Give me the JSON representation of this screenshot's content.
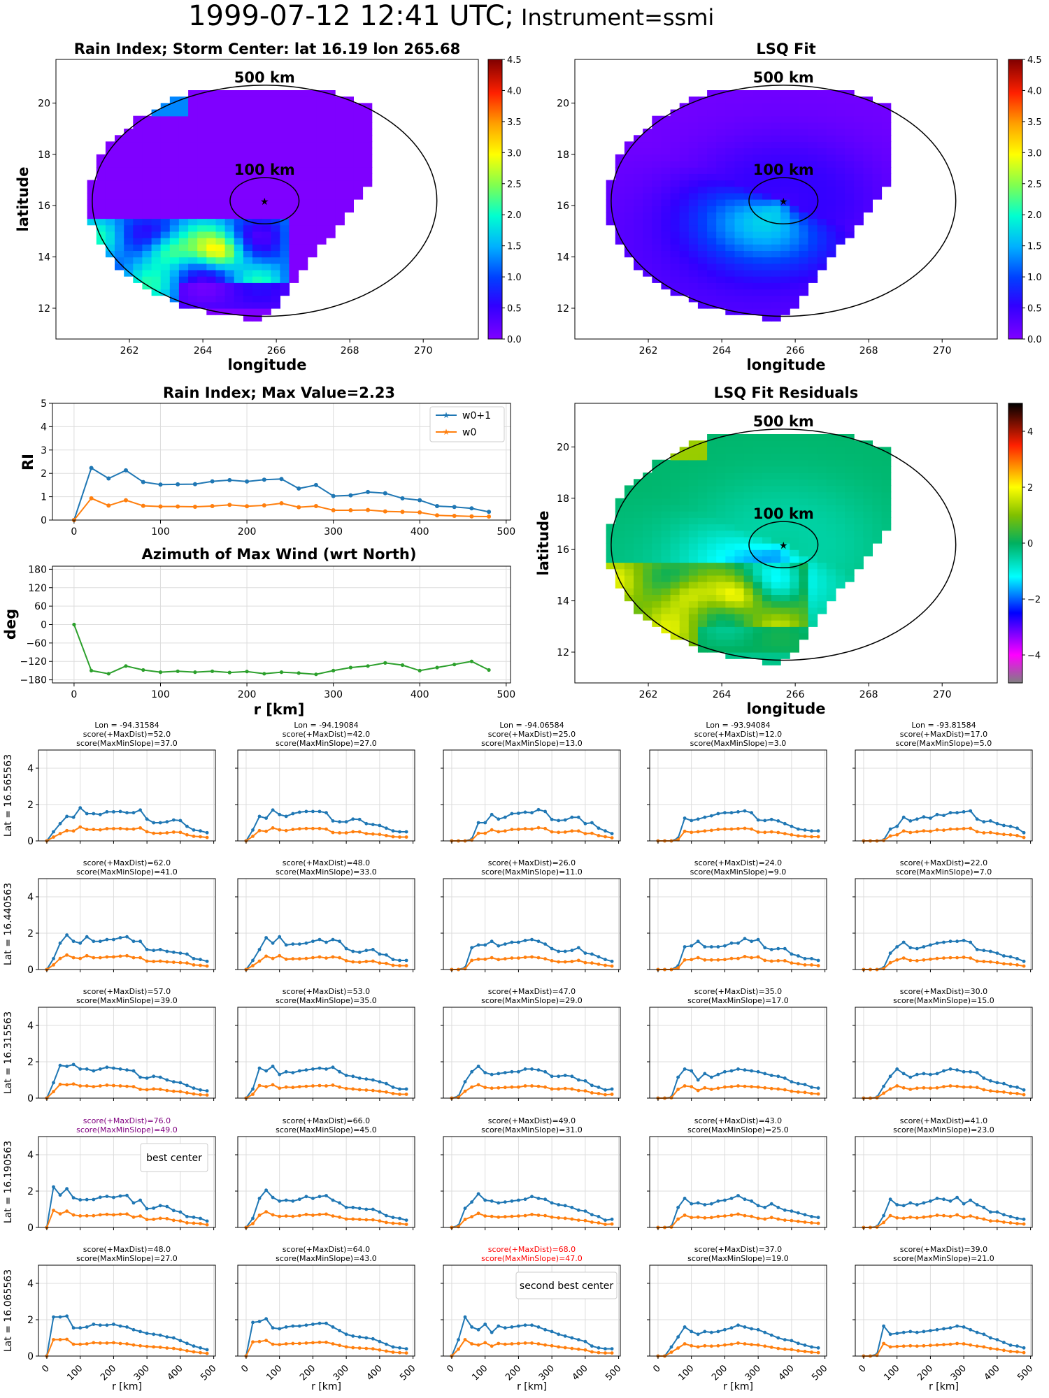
{
  "suptitle": {
    "time": "1999-07-12 12:41 UTC;",
    "instrument": "Instrument=ssmi"
  },
  "maps": {
    "rain_index": {
      "title": "Rain Index; Storm Center: lat 16.19 lon 265.68",
      "xlabel": "longitude",
      "ylabel": "latitude"
    },
    "lsq_fit": {
      "title": "LSQ Fit",
      "xlabel": "longitude"
    },
    "residuals": {
      "title": "LSQ Fit Residuals",
      "xlabel": "longitude",
      "ylabel": "latitude"
    },
    "circle_labels": [
      "500 km",
      "100 km"
    ],
    "center": {
      "lat": 16.19,
      "lon": 265.68
    },
    "xticks": [
      "262",
      "264",
      "266",
      "268",
      "270"
    ],
    "yticks": [
      "12",
      "14",
      "16",
      "18",
      "20"
    ],
    "colorbar_ticks": [
      "0.0",
      "0.5",
      "1.0",
      "1.5",
      "2.0",
      "2.5",
      "3.0",
      "3.5",
      "4.0",
      "4.5"
    ],
    "residual_colorbar_ticks": [
      "−4",
      "−2",
      "0",
      "2",
      "4"
    ]
  },
  "rain_profile": {
    "title": "Rain Index; Max Value=2.23",
    "ylabel": "RI",
    "legend": [
      "w0+1",
      "w0"
    ],
    "colors": {
      "w0p1": "#1f77b4",
      "w0": "#ff7f0e",
      "azimuth": "#2ca02c"
    }
  },
  "azimuth": {
    "title": "Azimuth of Max Wind (wrt North)",
    "ylabel": "deg",
    "xlabel": "r [km]",
    "yticks": [
      "180",
      "120",
      "60",
      "0",
      "−60",
      "−120",
      "−180"
    ]
  },
  "grid": {
    "lons": [
      "Lon = -94.31584",
      "Lon = -94.19084",
      "Lon = -94.06584",
      "Lon = -93.94084",
      "Lon = -93.81584"
    ],
    "lats": [
      "Lat = 16.565563",
      "Lat = 16.440563",
      "Lat = 16.315563",
      "Lat = 16.190563",
      "Lat = 16.065563"
    ],
    "xlabel": "r [km]",
    "xticks": [
      "0",
      "100",
      "200",
      "300",
      "400",
      "500"
    ],
    "yticks": [
      "0",
      "2",
      "4"
    ],
    "best_label": "best center",
    "second_label": "second best center",
    "scores": [
      [
        [
          "score(+MaxDist)=52.0",
          "score(MaxMinSlope)=37.0"
        ],
        [
          "score(+MaxDist)=42.0",
          "score(MaxMinSlope)=27.0"
        ],
        [
          "score(+MaxDist)=25.0",
          "score(MaxMinSlope)=13.0"
        ],
        [
          "score(+MaxDist)=12.0",
          "score(MaxMinSlope)=3.0"
        ],
        [
          "score(+MaxDist)=17.0",
          "score(MaxMinSlope)=5.0"
        ]
      ],
      [
        [
          "score(+MaxDist)=62.0",
          "score(MaxMinSlope)=41.0"
        ],
        [
          "score(+MaxDist)=48.0",
          "score(MaxMinSlope)=33.0"
        ],
        [
          "score(+MaxDist)=26.0",
          "score(MaxMinSlope)=11.0"
        ],
        [
          "score(+MaxDist)=24.0",
          "score(MaxMinSlope)=9.0"
        ],
        [
          "score(+MaxDist)=22.0",
          "score(MaxMinSlope)=7.0"
        ]
      ],
      [
        [
          "score(+MaxDist)=57.0",
          "score(MaxMinSlope)=39.0"
        ],
        [
          "score(+MaxDist)=53.0",
          "score(MaxMinSlope)=35.0"
        ],
        [
          "score(+MaxDist)=47.0",
          "score(MaxMinSlope)=29.0"
        ],
        [
          "score(+MaxDist)=35.0",
          "score(MaxMinSlope)=17.0"
        ],
        [
          "score(+MaxDist)=30.0",
          "score(MaxMinSlope)=15.0"
        ]
      ],
      [
        [
          "score(+MaxDist)=76.0",
          "score(MaxMinSlope)=49.0"
        ],
        [
          "score(+MaxDist)=66.0",
          "score(MaxMinSlope)=45.0"
        ],
        [
          "score(+MaxDist)=49.0",
          "score(MaxMinSlope)=31.0"
        ],
        [
          "score(+MaxDist)=43.0",
          "score(MaxMinSlope)=25.0"
        ],
        [
          "score(+MaxDist)=41.0",
          "score(MaxMinSlope)=23.0"
        ]
      ],
      [
        [
          "score(+MaxDist)=48.0",
          "score(MaxMinSlope)=27.0"
        ],
        [
          "score(+MaxDist)=64.0",
          "score(MaxMinSlope)=43.0"
        ],
        [
          "score(+MaxDist)=68.0",
          "score(MaxMinSlope)=47.0"
        ],
        [
          "score(+MaxDist)=37.0",
          "score(MaxMinSlope)=19.0"
        ],
        [
          "score(+MaxDist)=39.0",
          "score(MaxMinSlope)=21.0"
        ]
      ]
    ],
    "score_colors": {
      "normal": "#000000",
      "best": "#800080",
      "second": "#ff0000"
    }
  },
  "chart_data": [
    {
      "type": "line",
      "title": "Rain Index; Max Value=2.23",
      "xlabel": "",
      "ylabel": "RI",
      "xlim": [
        -25,
        505
      ],
      "ylim": [
        0,
        5
      ],
      "xticks": [
        "0",
        "100",
        "200",
        "300",
        "400",
        "500"
      ],
      "yticks": [
        "0",
        "1",
        "2",
        "3",
        "4",
        "5"
      ],
      "grid": true,
      "legend_position": "top-right",
      "x": [
        0,
        20,
        40,
        60,
        80,
        100,
        120,
        140,
        160,
        180,
        200,
        220,
        240,
        260,
        280,
        300,
        320,
        340,
        360,
        380,
        400,
        420,
        440,
        460,
        480
      ],
      "series": [
        {
          "name": "w0+1",
          "values": [
            0,
            2.23,
            1.78,
            2.13,
            1.63,
            1.52,
            1.53,
            1.54,
            1.66,
            1.71,
            1.65,
            1.73,
            1.76,
            1.35,
            1.5,
            1.03,
            1.06,
            1.2,
            1.15,
            0.93,
            0.85,
            0.6,
            0.56,
            0.5,
            0.35
          ]
        },
        {
          "name": "w0",
          "values": [
            0,
            0.93,
            0.62,
            0.85,
            0.61,
            0.58,
            0.58,
            0.57,
            0.6,
            0.65,
            0.59,
            0.63,
            0.72,
            0.55,
            0.6,
            0.42,
            0.42,
            0.43,
            0.37,
            0.35,
            0.33,
            0.2,
            0.18,
            0.16,
            0.15
          ]
        }
      ]
    },
    {
      "type": "line",
      "title": "Azimuth of Max Wind (wrt North)",
      "xlabel": "r [km]",
      "ylabel": "deg",
      "xlim": [
        -25,
        505
      ],
      "ylim": [
        -190,
        190
      ],
      "grid": true,
      "x": [
        0,
        20,
        40,
        60,
        80,
        100,
        120,
        140,
        160,
        180,
        200,
        220,
        240,
        260,
        280,
        300,
        320,
        340,
        360,
        380,
        400,
        420,
        440,
        460,
        480
      ],
      "series": [
        {
          "values": [
            0,
            -150,
            -160,
            -135,
            -148,
            -155,
            -152,
            -155,
            -152,
            -156,
            -153,
            -160,
            -155,
            -158,
            -162,
            -150,
            -140,
            -135,
            -125,
            -132,
            -150,
            -140,
            -130,
            -120,
            -148
          ]
        }
      ]
    },
    {
      "type": "line",
      "title": "Grid of candidate centers (5 x 5 small multiples)",
      "xlim": [
        -25,
        505
      ],
      "ylim": [
        0,
        5
      ],
      "x": [
        0,
        20,
        40,
        60,
        80,
        100,
        120,
        140,
        160,
        180,
        200,
        220,
        240,
        260,
        280,
        300,
        320,
        340,
        360,
        380,
        400,
        420,
        440,
        460,
        480
      ],
      "panels": [
        [
          [
            0,
            0.5,
            0.95,
            1.35,
            1.3,
            1.82,
            1.5,
            1.5,
            1.45,
            1.6,
            1.6,
            1.62,
            1.55,
            1.55,
            1.7,
            1.2,
            1.0,
            1.0,
            1.05,
            1.15,
            1.12,
            0.8,
            0.6,
            0.55,
            0.45
          ],
          [
            0,
            0.6,
            1.35,
            1.25,
            1.7,
            1.45,
            1.35,
            1.5,
            1.58,
            1.62,
            1.62,
            1.62,
            1.55,
            1.1,
            1.05,
            1.05,
            1.2,
            1.18,
            0.95,
            0.9,
            0.85,
            0.7,
            0.55,
            0.5,
            0.5
          ],
          [
            0,
            0,
            0,
            0.1,
            1.0,
            1.0,
            1.45,
            1.2,
            1.3,
            1.5,
            1.52,
            1.58,
            1.55,
            1.72,
            1.62,
            1.18,
            1.12,
            1.15,
            1.3,
            1.3,
            0.95,
            1.0,
            0.7,
            0.55,
            0.4
          ],
          [
            0,
            0,
            0,
            0.15,
            1.25,
            1.12,
            1.2,
            1.3,
            1.38,
            1.5,
            1.55,
            1.55,
            1.6,
            1.65,
            1.55,
            1.15,
            1.12,
            1.18,
            1.1,
            0.95,
            0.8,
            0.65,
            0.6,
            0.55,
            0.55
          ],
          [
            0,
            0,
            0,
            0.05,
            0.65,
            0.8,
            1.3,
            1.1,
            1.2,
            1.32,
            1.25,
            1.45,
            1.4,
            1.55,
            1.55,
            1.6,
            1.65,
            1.2,
            1.05,
            1.1,
            0.95,
            0.85,
            0.8,
            0.7,
            0.45
          ]
        ],
        [
          [
            0,
            0.6,
            1.45,
            1.9,
            1.55,
            1.45,
            1.8,
            1.55,
            1.55,
            1.65,
            1.65,
            1.75,
            1.8,
            1.55,
            1.55,
            1.1,
            1.05,
            1.1,
            1.0,
            0.95,
            0.9,
            0.85,
            0.6,
            0.55,
            0.45
          ],
          [
            0,
            0.5,
            1.1,
            1.75,
            1.45,
            1.8,
            1.35,
            1.4,
            1.4,
            1.45,
            1.55,
            1.65,
            1.5,
            1.65,
            1.55,
            1.15,
            1.0,
            0.95,
            1.05,
            1.1,
            0.85,
            0.8,
            0.55,
            0.5,
            0.5
          ],
          [
            0,
            0,
            0.1,
            1.2,
            1.35,
            1.35,
            1.55,
            1.3,
            1.4,
            1.5,
            1.5,
            1.6,
            1.65,
            1.55,
            1.4,
            1.15,
            1.0,
            1.0,
            1.05,
            1.2,
            0.9,
            0.85,
            0.7,
            0.55,
            0.45
          ],
          [
            0,
            0,
            0,
            0.2,
            1.25,
            1.3,
            1.55,
            1.25,
            1.25,
            1.25,
            1.3,
            1.45,
            1.45,
            1.7,
            1.55,
            1.65,
            1.2,
            1.1,
            1.15,
            1.15,
            0.85,
            0.75,
            0.6,
            0.6,
            0.5
          ],
          [
            0,
            0,
            0,
            0.1,
            0.9,
            1.25,
            1.5,
            1.2,
            1.15,
            1.25,
            1.35,
            1.45,
            1.5,
            1.55,
            1.55,
            1.6,
            1.5,
            1.1,
            1.05,
            1.0,
            0.9,
            0.75,
            0.7,
            0.6,
            0.45
          ]
        ],
        [
          [
            0,
            0.85,
            1.8,
            1.75,
            1.85,
            1.6,
            1.6,
            1.5,
            1.6,
            1.7,
            1.65,
            1.6,
            1.55,
            1.5,
            1.15,
            1.1,
            1.2,
            1.15,
            1.0,
            0.9,
            0.85,
            0.7,
            0.55,
            0.45,
            0.4
          ],
          [
            0,
            0.5,
            1.65,
            1.5,
            1.75,
            1.3,
            1.45,
            1.4,
            1.5,
            1.55,
            1.6,
            1.65,
            1.6,
            1.7,
            1.45,
            1.25,
            1.2,
            1.1,
            1.05,
            1.0,
            0.9,
            0.8,
            0.6,
            0.5,
            0.5
          ],
          [
            0,
            0.1,
            0.9,
            1.45,
            1.75,
            1.4,
            1.3,
            1.35,
            1.4,
            1.45,
            1.45,
            1.6,
            1.6,
            1.55,
            1.45,
            1.2,
            1.2,
            1.25,
            1.2,
            1.0,
            0.95,
            0.7,
            0.6,
            0.45,
            0.5
          ],
          [
            0,
            0,
            0.05,
            1.15,
            1.6,
            1.5,
            1.0,
            1.35,
            1.15,
            1.3,
            1.45,
            1.5,
            1.6,
            1.55,
            1.5,
            1.45,
            1.35,
            1.25,
            1.2,
            1.1,
            0.9,
            0.8,
            0.75,
            0.6,
            0.55
          ],
          [
            0,
            0,
            0.05,
            0.65,
            1.2,
            1.6,
            1.35,
            1.15,
            1.3,
            1.35,
            1.3,
            1.35,
            1.5,
            1.6,
            1.55,
            1.45,
            1.45,
            1.4,
            1.1,
            0.95,
            0.85,
            0.8,
            0.65,
            0.6,
            0.45
          ]
        ],
        [
          [
            0,
            2.23,
            1.78,
            2.13,
            1.63,
            1.52,
            1.53,
            1.54,
            1.66,
            1.71,
            1.65,
            1.73,
            1.76,
            1.35,
            1.5,
            1.03,
            1.06,
            1.2,
            1.15,
            0.93,
            0.85,
            0.6,
            0.56,
            0.5,
            0.35
          ],
          [
            0,
            0.5,
            1.6,
            2.05,
            1.65,
            1.45,
            1.5,
            1.45,
            1.55,
            1.7,
            1.6,
            1.7,
            1.75,
            1.5,
            1.35,
            1.1,
            1.1,
            1.05,
            1.0,
            1.0,
            0.85,
            0.65,
            0.55,
            0.5,
            0.4
          ],
          [
            0,
            0.1,
            1.05,
            1.4,
            1.85,
            1.5,
            1.45,
            1.35,
            1.4,
            1.45,
            1.5,
            1.55,
            1.7,
            1.6,
            1.55,
            1.35,
            1.25,
            1.2,
            1.1,
            0.95,
            0.9,
            0.7,
            0.6,
            0.4,
            0.45
          ],
          [
            0,
            0,
            0.05,
            1.1,
            1.6,
            1.3,
            1.35,
            1.25,
            1.3,
            1.45,
            1.5,
            1.6,
            1.75,
            1.55,
            1.45,
            1.2,
            1.1,
            1.3,
            1.1,
            0.95,
            0.9,
            0.8,
            0.7,
            0.6,
            0.55
          ],
          [
            0,
            0,
            0.05,
            0.65,
            1.55,
            1.25,
            1.2,
            1.35,
            1.25,
            1.35,
            1.45,
            1.6,
            1.55,
            1.45,
            1.65,
            1.3,
            1.5,
            1.25,
            1.1,
            0.85,
            0.85,
            0.7,
            0.6,
            0.5,
            0.45
          ]
        ],
        [
          [
            0,
            2.15,
            2.15,
            2.2,
            1.55,
            1.55,
            1.6,
            1.75,
            1.7,
            1.7,
            1.75,
            1.65,
            1.6,
            1.45,
            1.35,
            1.25,
            1.2,
            1.15,
            1.05,
            1.0,
            0.85,
            0.7,
            0.55,
            0.45,
            0.35
          ],
          [
            0,
            1.85,
            1.9,
            2.05,
            1.55,
            1.5,
            1.6,
            1.65,
            1.65,
            1.7,
            1.75,
            1.8,
            1.8,
            1.6,
            1.4,
            1.2,
            1.1,
            1.05,
            1.0,
            0.95,
            0.8,
            0.65,
            0.5,
            0.45,
            0.4
          ],
          [
            0,
            0.9,
            2.15,
            1.6,
            1.45,
            1.75,
            1.3,
            1.65,
            1.55,
            1.6,
            1.65,
            1.7,
            1.7,
            1.6,
            1.45,
            1.35,
            1.2,
            1.1,
            1.0,
            0.9,
            0.8,
            0.55,
            0.45,
            0.4,
            0.4
          ],
          [
            0,
            0,
            0.5,
            1.05,
            1.6,
            1.35,
            1.2,
            1.35,
            1.3,
            1.35,
            1.45,
            1.55,
            1.7,
            1.6,
            1.5,
            1.45,
            1.3,
            1.15,
            1.0,
            0.9,
            0.85,
            0.7,
            0.6,
            0.5,
            0.45
          ],
          [
            0,
            0,
            0.1,
            1.65,
            1.2,
            1.25,
            1.3,
            1.35,
            1.3,
            1.35,
            1.4,
            1.45,
            1.5,
            1.55,
            1.65,
            1.6,
            1.45,
            1.3,
            1.2,
            1.0,
            0.9,
            0.75,
            0.6,
            0.55,
            0.45
          ]
        ]
      ]
    }
  ]
}
